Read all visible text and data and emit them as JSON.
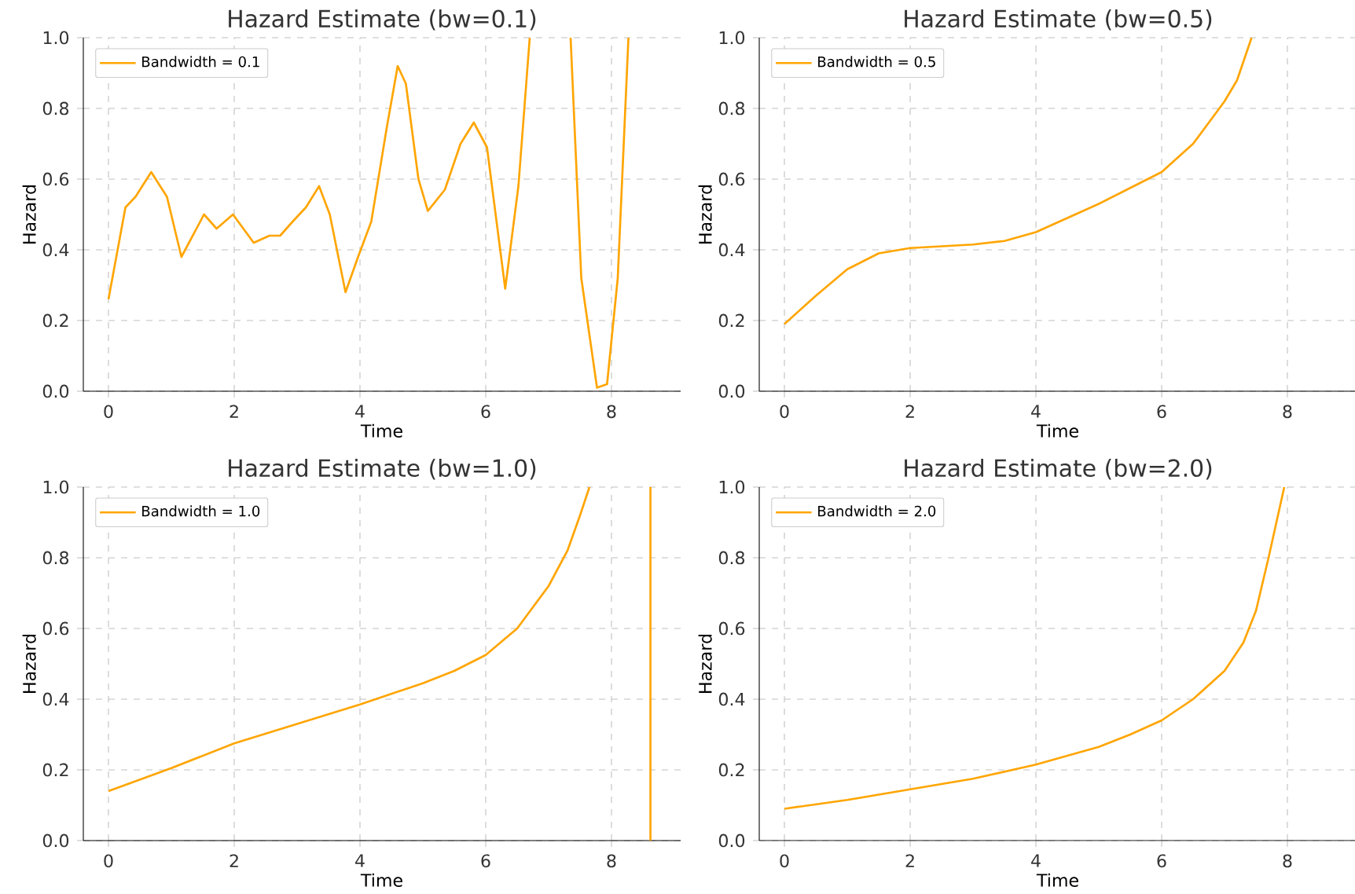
{
  "chart_data": [
    {
      "type": "line",
      "title": "Hazard Estimate (bw=0.1)",
      "xlabel": "Time",
      "ylabel": "Hazard",
      "xlim": [
        -0.4,
        9.1
      ],
      "ylim": [
        0,
        1
      ],
      "xticks": [
        0,
        2,
        4,
        6,
        8
      ],
      "yticks": [
        {
          "value": 0,
          "label": "0.0"
        },
        {
          "value": 0.2,
          "label": "0.2"
        },
        {
          "value": 0.4,
          "label": "0.4"
        },
        {
          "value": 0.6,
          "label": "0.6"
        },
        {
          "value": 0.8,
          "label": "0.8"
        },
        {
          "value": 1,
          "label": "1.0"
        }
      ],
      "grid": true,
      "legend": "top left",
      "series": [
        {
          "name": "Bandwidth = 0.1",
          "color": "#ffa500",
          "x": [
            0,
            0.27,
            0.43,
            0.68,
            0.93,
            1.16,
            1.52,
            1.72,
            1.98,
            2.31,
            2.56,
            2.73,
            2.93,
            3.14,
            3.35,
            3.52,
            3.77,
            3.97,
            4.18,
            4.43,
            4.6,
            4.73,
            4.93,
            5.08,
            5.35,
            5.6,
            5.81,
            6.02,
            6.31,
            6.52,
            6.7,
            7.0,
            7.35,
            7.52,
            7.77,
            7.93,
            8.1,
            8.27
          ],
          "values": [
            0.26,
            0.52,
            0.55,
            0.62,
            0.55,
            0.38,
            0.5,
            0.46,
            0.5,
            0.42,
            0.44,
            0.44,
            0.48,
            0.52,
            0.58,
            0.5,
            0.28,
            0.38,
            0.48,
            0.75,
            0.92,
            0.87,
            0.6,
            0.51,
            0.57,
            0.7,
            0.76,
            0.69,
            0.29,
            0.58,
            1.0,
            null,
            1.0,
            0.32,
            0.01,
            0.02,
            0.32,
            1.0
          ]
        }
      ]
    },
    {
      "type": "line",
      "title": "Hazard Estimate (bw=0.5)",
      "xlabel": "Time",
      "ylabel": "Hazard",
      "xlim": [
        -0.4,
        9.1
      ],
      "ylim": [
        0,
        1
      ],
      "xticks": [
        0,
        2,
        4,
        6,
        8
      ],
      "yticks": [
        {
          "value": 0,
          "label": "0.0"
        },
        {
          "value": 0.2,
          "label": "0.2"
        },
        {
          "value": 0.4,
          "label": "0.4"
        },
        {
          "value": 0.6,
          "label": "0.6"
        },
        {
          "value": 0.8,
          "label": "0.8"
        },
        {
          "value": 1,
          "label": "1.0"
        }
      ],
      "grid": true,
      "legend": "top left",
      "series": [
        {
          "name": "Bandwidth = 0.5",
          "color": "#ffa500",
          "x": [
            0,
            0.5,
            1,
            1.5,
            2,
            3,
            3.5,
            4,
            4.5,
            5,
            5.5,
            6,
            6.5,
            7,
            7.2,
            7.43
          ],
          "values": [
            0.19,
            0.27,
            0.345,
            0.39,
            0.405,
            0.415,
            0.425,
            0.45,
            0.49,
            0.53,
            0.575,
            0.62,
            0.7,
            0.82,
            0.88,
            1.0
          ]
        }
      ]
    },
    {
      "type": "line",
      "title": "Hazard Estimate (bw=1.0)",
      "xlabel": "Time",
      "ylabel": "Hazard",
      "xlim": [
        -0.4,
        9.1
      ],
      "ylim": [
        0,
        1
      ],
      "xticks": [
        0,
        2,
        4,
        6,
        8
      ],
      "yticks": [
        {
          "value": 0,
          "label": "0.0"
        },
        {
          "value": 0.2,
          "label": "0.2"
        },
        {
          "value": 0.4,
          "label": "0.4"
        },
        {
          "value": 0.6,
          "label": "0.6"
        },
        {
          "value": 0.8,
          "label": "0.8"
        },
        {
          "value": 1,
          "label": "1.0"
        }
      ],
      "grid": true,
      "legend": "top left",
      "series": [
        {
          "name": "Bandwidth = 1.0",
          "color": "#ffa500",
          "x": [
            0,
            1,
            2,
            3,
            4,
            5,
            5.5,
            6,
            6.5,
            7,
            7.3,
            7.5,
            7.65,
            8.1,
            8.62,
            8.62
          ],
          "values": [
            0.14,
            0.205,
            0.275,
            0.33,
            0.385,
            0.445,
            0.48,
            0.525,
            0.6,
            0.72,
            0.82,
            0.92,
            1.0,
            null,
            0,
            1.0
          ]
        }
      ]
    },
    {
      "type": "line",
      "title": "Hazard Estimate (bw=2.0)",
      "xlabel": "Time",
      "ylabel": "Hazard",
      "xlim": [
        -0.4,
        9.1
      ],
      "ylim": [
        0,
        1
      ],
      "xticks": [
        0,
        2,
        4,
        6,
        8
      ],
      "yticks": [
        {
          "value": 0,
          "label": "0.0"
        },
        {
          "value": 0.2,
          "label": "0.2"
        },
        {
          "value": 0.4,
          "label": "0.4"
        },
        {
          "value": 0.6,
          "label": "0.6"
        },
        {
          "value": 0.8,
          "label": "0.8"
        },
        {
          "value": 1,
          "label": "1.0"
        }
      ],
      "grid": true,
      "legend": "top left",
      "series": [
        {
          "name": "Bandwidth = 2.0",
          "color": "#ffa500",
          "x": [
            0,
            1,
            2,
            3,
            4,
            5,
            5.5,
            6,
            6.5,
            7,
            7.3,
            7.5,
            7.7,
            7.85,
            7.95
          ],
          "values": [
            0.09,
            0.115,
            0.145,
            0.175,
            0.215,
            0.265,
            0.3,
            0.34,
            0.4,
            0.48,
            0.56,
            0.65,
            0.8,
            0.92,
            1.0
          ]
        }
      ]
    }
  ]
}
